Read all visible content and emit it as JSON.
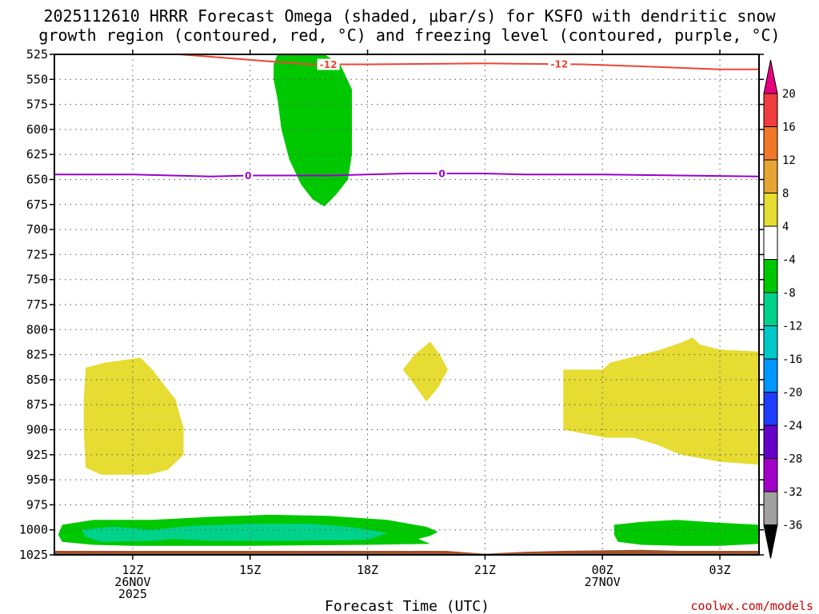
{
  "title_line1": "2025112610 HRRR Forecast Omega (shaded, μbar/s) for KSFO with dendritic snow",
  "title_line2": "growth region (contoured, red, °C) and freezing level (contoured, purple, °C)",
  "xlabel": "Forecast Time (UTC)",
  "credit": "coolwx.com/models",
  "colors": {
    "dgz": "#ee4433",
    "freezing": "#9900cc",
    "ground": "#a0522d",
    "shade_pos_4_8": "#e6dc32",
    "shade_neg_4_8": "#00c800",
    "shade_neg_8_12": "#00d28c"
  },
  "chart_data": {
    "type": "heatmap",
    "x_range_hours": [
      10,
      28
    ],
    "y_range_hpa": [
      525,
      1025
    ],
    "x_ticks": [
      {
        "hour": 12,
        "label": "12Z",
        "sub": [
          "26NOV",
          "2025"
        ]
      },
      {
        "hour": 15,
        "label": "15Z",
        "sub": []
      },
      {
        "hour": 18,
        "label": "18Z",
        "sub": []
      },
      {
        "hour": 21,
        "label": "21Z",
        "sub": []
      },
      {
        "hour": 24,
        "label": "00Z",
        "sub": [
          "27NOV"
        ]
      },
      {
        "hour": 27,
        "label": "03Z",
        "sub": []
      }
    ],
    "y_ticks": [
      525,
      550,
      575,
      600,
      625,
      650,
      675,
      700,
      725,
      750,
      775,
      800,
      825,
      850,
      875,
      900,
      925,
      950,
      975,
      1000,
      1025
    ],
    "grid": true,
    "colorbar": {
      "units": "μbar/s",
      "tick_labels": [
        "20",
        "16",
        "12",
        "8",
        "4",
        "-4",
        "-8",
        "-12",
        "-16",
        "-20",
        "-24",
        "-28",
        "-32",
        "-36"
      ],
      "bins": [
        {
          "from": 20,
          "to": 24,
          "color": "#e6007e",
          "arrow": true
        },
        {
          "from": 16,
          "to": 20,
          "color": "#f03c3c"
        },
        {
          "from": 12,
          "to": 16,
          "color": "#f07828"
        },
        {
          "from": 8,
          "to": 12,
          "color": "#e6a532"
        },
        {
          "from": 4,
          "to": 8,
          "color": "#e6dc32"
        },
        {
          "from": -4,
          "to": 4,
          "color": "#ffffff"
        },
        {
          "from": -8,
          "to": -4,
          "color": "#00c800"
        },
        {
          "from": -12,
          "to": -8,
          "color": "#00d28c"
        },
        {
          "from": -16,
          "to": -12,
          "color": "#00c8c8"
        },
        {
          "from": -20,
          "to": -16,
          "color": "#0096ff"
        },
        {
          "from": -24,
          "to": -20,
          "color": "#1e3cff"
        },
        {
          "from": -28,
          "to": -24,
          "color": "#6400c8"
        },
        {
          "from": -32,
          "to": -28,
          "color": "#a000c8"
        },
        {
          "from": -36,
          "to": -32,
          "color": "#a0a0a0"
        },
        {
          "from": -40,
          "to": -36,
          "color": "#000000",
          "arrow": true
        }
      ]
    },
    "lines": [
      {
        "level_label": "-12",
        "color": "#ee4433",
        "points": [
          [
            13.2,
            525
          ],
          [
            15.5,
            532
          ],
          [
            16.5,
            535
          ],
          [
            18,
            535
          ],
          [
            21,
            534
          ],
          [
            23.5,
            535
          ],
          [
            25,
            537
          ],
          [
            27,
            540
          ],
          [
            28,
            540
          ]
        ],
        "labels_at_hours": [
          17.0,
          22.9
        ]
      },
      {
        "level_label": "0",
        "color": "#9900cc",
        "points": [
          [
            10,
            645
          ],
          [
            12,
            645
          ],
          [
            13,
            646
          ],
          [
            14,
            647
          ],
          [
            15,
            646
          ],
          [
            16,
            646
          ],
          [
            17,
            646
          ],
          [
            18,
            645
          ],
          [
            19,
            644
          ],
          [
            20,
            644
          ],
          [
            21,
            644
          ],
          [
            22,
            645
          ],
          [
            24,
            645
          ],
          [
            26,
            646
          ],
          [
            28,
            647
          ]
        ],
        "labels_at_hours": [
          14.95,
          19.9
        ]
      }
    ],
    "filled_regions": [
      {
        "bin": "-8 to -4",
        "color": "#00c800",
        "points": [
          [
            15.7,
            525
          ],
          [
            16.9,
            525
          ],
          [
            17.3,
            535
          ],
          [
            17.6,
            560
          ],
          [
            17.6,
            583
          ],
          [
            17.6,
            625
          ],
          [
            17.5,
            650
          ],
          [
            17.2,
            665
          ],
          [
            16.9,
            677
          ],
          [
            16.6,
            670
          ],
          [
            16.3,
            655
          ],
          [
            16.0,
            630
          ],
          [
            15.8,
            600
          ],
          [
            15.7,
            570
          ],
          [
            15.6,
            550
          ],
          [
            15.6,
            535
          ]
        ]
      },
      {
        "bin": "-8 to -4",
        "color": "#00c800",
        "points": [
          [
            10.2,
            995
          ],
          [
            11,
            990
          ],
          [
            12.5,
            990
          ],
          [
            14,
            987
          ],
          [
            15.5,
            985
          ],
          [
            17,
            986
          ],
          [
            18.5,
            990
          ],
          [
            19.5,
            997
          ],
          [
            19.8,
            1002
          ],
          [
            19.6,
            1006
          ],
          [
            19.3,
            1009
          ],
          [
            19.6,
            1014
          ],
          [
            18,
            1015
          ],
          [
            15,
            1016
          ],
          [
            12,
            1016
          ],
          [
            11,
            1015
          ],
          [
            10.2,
            1012
          ],
          [
            10.1,
            1005
          ]
        ]
      },
      {
        "bin": "-12 to -8",
        "color": "#00d28c",
        "points": [
          [
            10.7,
            1000
          ],
          [
            11.5,
            997
          ],
          [
            12.5,
            1000
          ],
          [
            13.5,
            996
          ],
          [
            15,
            994
          ],
          [
            16.5,
            994
          ],
          [
            17.5,
            997
          ],
          [
            18.5,
            1003
          ],
          [
            18,
            1010
          ],
          [
            16,
            1011
          ],
          [
            14,
            1011
          ],
          [
            13,
            1009
          ],
          [
            12.5,
            1011
          ],
          [
            11.2,
            1012
          ],
          [
            10.8,
            1007
          ]
        ]
      },
      {
        "bin": "-8 to -4",
        "color": "#00c800",
        "points": [
          [
            24.3,
            995
          ],
          [
            25,
            992
          ],
          [
            25.9,
            990
          ],
          [
            27,
            993
          ],
          [
            28,
            995
          ],
          [
            28,
            1014
          ],
          [
            27,
            1016
          ],
          [
            26,
            1016
          ],
          [
            25,
            1015
          ],
          [
            24.4,
            1012
          ],
          [
            24.3,
            1005
          ]
        ]
      },
      {
        "bin": "4 to 8",
        "color": "#e6dc32",
        "points": [
          [
            10.8,
            838
          ],
          [
            11.3,
            833
          ],
          [
            12.2,
            828
          ],
          [
            12.5,
            840
          ],
          [
            12.8,
            855
          ],
          [
            13.1,
            870
          ],
          [
            13.2,
            885
          ],
          [
            13.3,
            898
          ],
          [
            13.3,
            925
          ],
          [
            12.9,
            940
          ],
          [
            12.4,
            945
          ],
          [
            11.2,
            945
          ],
          [
            10.8,
            938
          ],
          [
            10.75,
            900
          ],
          [
            10.75,
            870
          ]
        ]
      },
      {
        "bin": "4 to 8",
        "color": "#e6dc32",
        "points": [
          [
            19.6,
            812
          ],
          [
            19.85,
            825
          ],
          [
            20.05,
            840
          ],
          [
            19.8,
            858
          ],
          [
            19.5,
            872
          ],
          [
            19.2,
            855
          ],
          [
            18.9,
            840
          ],
          [
            19.2,
            825
          ]
        ]
      },
      {
        "bin": "4 to 8",
        "color": "#e6dc32",
        "points": [
          [
            23.0,
            840
          ],
          [
            24.0,
            840
          ],
          [
            24.2,
            833
          ],
          [
            24.7,
            828
          ],
          [
            25.5,
            820
          ],
          [
            26.0,
            813
          ],
          [
            26.3,
            808
          ],
          [
            26.5,
            815
          ],
          [
            27.0,
            820
          ],
          [
            28,
            822
          ],
          [
            28,
            935
          ],
          [
            27.0,
            932
          ],
          [
            26.0,
            925
          ],
          [
            25.4,
            915
          ],
          [
            24.8,
            908
          ],
          [
            24.1,
            908
          ],
          [
            23.0,
            900
          ],
          [
            23.0,
            870
          ]
        ]
      }
    ],
    "ground": {
      "color": "#a0522d",
      "points": [
        [
          10,
          1021
        ],
        [
          20,
          1021
        ],
        [
          21,
          1024
        ],
        [
          22,
          1022
        ],
        [
          23,
          1021
        ],
        [
          25,
          1020
        ],
        [
          26,
          1021
        ],
        [
          28,
          1021
        ],
        [
          28,
          1025
        ],
        [
          10,
          1025
        ]
      ]
    }
  }
}
